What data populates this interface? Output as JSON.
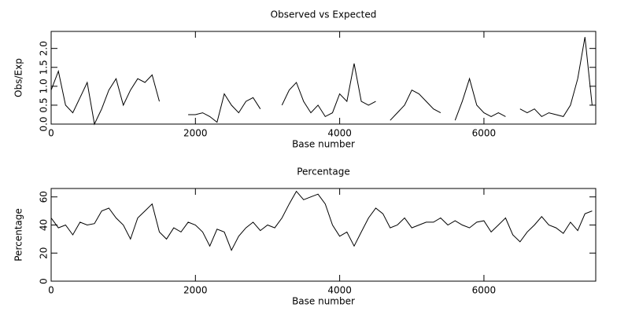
{
  "chart_data": [
    {
      "type": "line",
      "title": "Observed vs Expected",
      "xlabel": "Base number",
      "ylabel": "Obs/Exp",
      "x": [
        0,
        100,
        200,
        300,
        400,
        500,
        600,
        700,
        800,
        900,
        1000,
        1100,
        1200,
        1300,
        1400,
        1500,
        1600,
        1700,
        1800,
        1900,
        2000,
        2100,
        2200,
        2300,
        2400,
        2500,
        2600,
        2700,
        2800,
        2900,
        3000,
        3100,
        3200,
        3300,
        3400,
        3500,
        3600,
        3700,
        3800,
        3900,
        4000,
        4100,
        4200,
        4300,
        4400,
        4500,
        4600,
        4700,
        4800,
        4900,
        5000,
        5100,
        5200,
        5300,
        5400,
        5500,
        5600,
        5700,
        5800,
        5900,
        6000,
        6100,
        6200,
        6300,
        6400,
        6500,
        6600,
        6700,
        6800,
        6900,
        7000,
        7100,
        7200,
        7300,
        7400,
        7500
      ],
      "series": [
        {
          "color": "#000000",
          "values": [
            0.9,
            1.4,
            0.5,
            0.3,
            0.7,
            1.1,
            0.0,
            0.4,
            0.9,
            1.2,
            0.5,
            0.9,
            1.2,
            1.1,
            1.3,
            0.6,
            null,
            null,
            null,
            0.25,
            0.25,
            0.3,
            0.2,
            0.05,
            0.8,
            0.5,
            0.3,
            0.6,
            0.7,
            0.4,
            null,
            null,
            0.5,
            0.9,
            1.1,
            0.6,
            0.3,
            0.5,
            0.2,
            0.3,
            0.8,
            0.6,
            1.6,
            0.6,
            0.5,
            0.6,
            null,
            0.1,
            0.3,
            0.5,
            0.9,
            0.8,
            0.6,
            0.4,
            0.3,
            null,
            0.1,
            0.6,
            1.2,
            0.5,
            0.3,
            0.2,
            0.3,
            0.2,
            null,
            0.4,
            0.3,
            0.4,
            0.2,
            0.3,
            0.25,
            0.2,
            0.5,
            1.2,
            2.3,
            0.5
          ]
        }
      ],
      "xlim": [
        0,
        7550
      ],
      "xticks": [
        0,
        2000,
        4000,
        6000
      ],
      "ylim": [
        0,
        2.45
      ],
      "yticks": [
        {
          "value": 0,
          "label": "0.0"
        },
        0.5,
        {
          "value": 1,
          "label": "1.0"
        },
        1.5,
        {
          "value": 2,
          "label": "2.0"
        }
      ]
    },
    {
      "type": "line",
      "title": "Percentage",
      "xlabel": "Base number",
      "ylabel": "Percentage",
      "x": [
        0,
        100,
        200,
        300,
        400,
        500,
        600,
        700,
        800,
        900,
        1000,
        1100,
        1200,
        1300,
        1400,
        1500,
        1600,
        1700,
        1800,
        1900,
        2000,
        2100,
        2200,
        2300,
        2400,
        2500,
        2600,
        2700,
        2800,
        2900,
        3000,
        3100,
        3200,
        3300,
        3400,
        3500,
        3600,
        3700,
        3800,
        3900,
        4000,
        4100,
        4200,
        4300,
        4400,
        4500,
        4600,
        4700,
        4800,
        4900,
        5000,
        5100,
        5200,
        5300,
        5400,
        5500,
        5600,
        5700,
        5800,
        5900,
        6000,
        6100,
        6200,
        6300,
        6400,
        6500,
        6600,
        6700,
        6800,
        6900,
        7000,
        7100,
        7200,
        7300,
        7400,
        7500
      ],
      "series": [
        {
          "color": "#000000",
          "values": [
            45,
            38,
            40,
            33,
            42,
            40,
            41,
            50,
            52,
            45,
            40,
            30,
            45,
            50,
            55,
            35,
            30,
            38,
            35,
            42,
            40,
            35,
            25,
            37,
            35,
            22,
            32,
            38,
            42,
            36,
            40,
            38,
            45,
            55,
            64,
            58,
            60,
            62,
            55,
            40,
            32,
            35,
            25,
            35,
            45,
            52,
            48,
            38,
            40,
            45,
            38,
            40,
            42,
            42,
            45,
            40,
            43,
            40,
            38,
            42,
            43,
            35,
            40,
            45,
            33,
            28,
            35,
            40,
            46,
            40,
            38,
            34,
            42,
            36,
            48,
            50
          ]
        }
      ],
      "xlim": [
        0,
        7550
      ],
      "xticks": [
        0,
        2000,
        4000,
        6000
      ],
      "ylim": [
        0,
        66
      ],
      "yticks": [
        0,
        20,
        40,
        60
      ]
    }
  ]
}
